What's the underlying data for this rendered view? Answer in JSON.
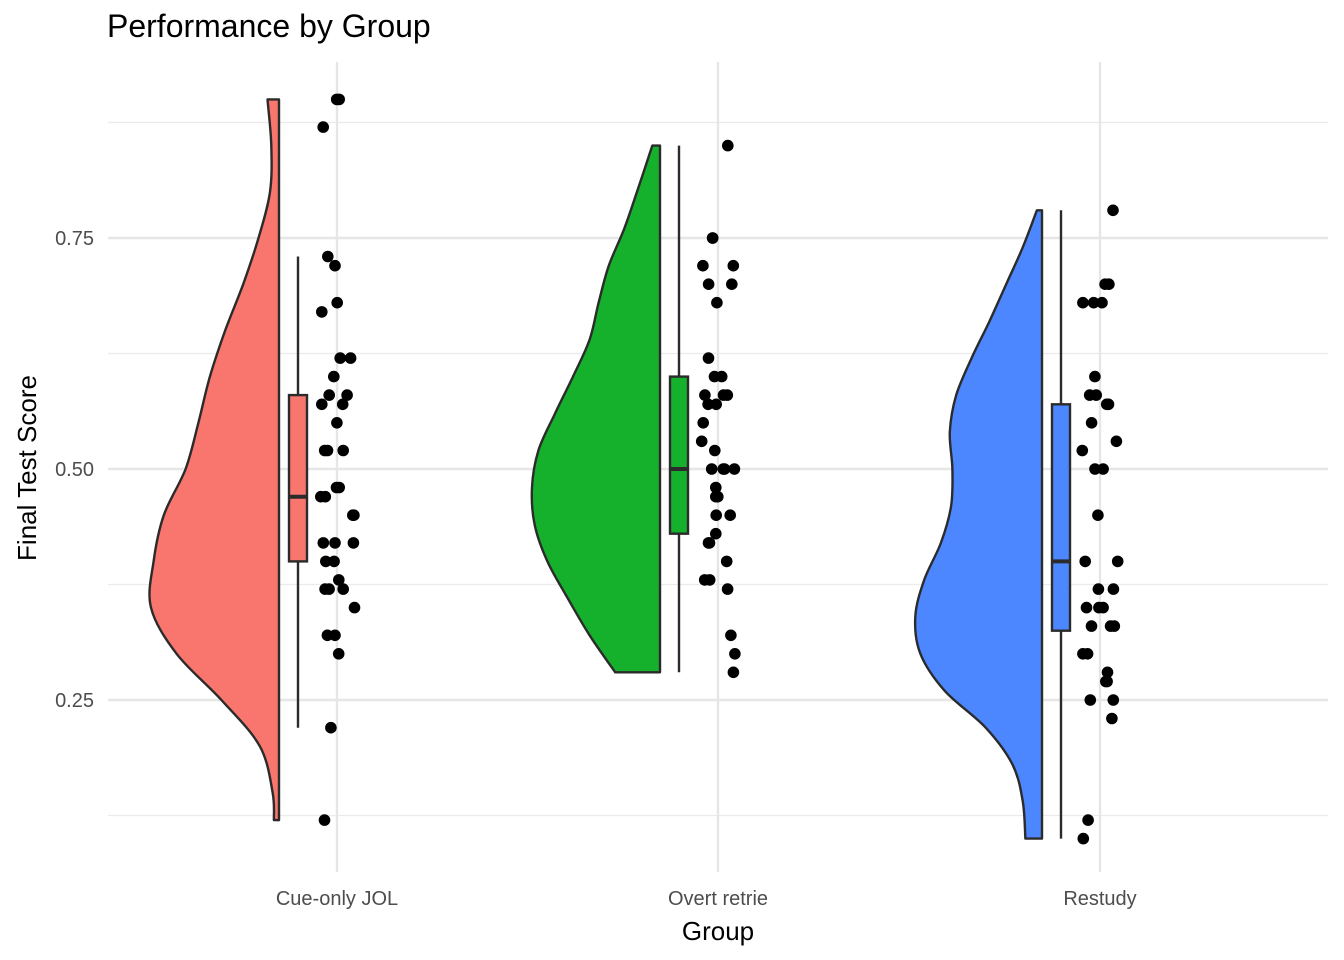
{
  "chart_data": {
    "type": "raincloud",
    "title": "Performance by Group",
    "xlabel": "Group",
    "ylabel": "Final Test Score",
    "ylim": [
      0.095,
      0.93
    ],
    "yticks": [
      0.25,
      0.5,
      0.75
    ],
    "ytick_labels": [
      "0.25",
      "0.50",
      "0.75"
    ],
    "grid": true,
    "legend": "none",
    "categories": [
      "Cue-only JOL",
      "Overt retrie",
      "Restudy"
    ],
    "groups": [
      {
        "category": "Cue-only JOL",
        "color": "#F8766D",
        "box": {
          "whisker_low": 0.22,
          "q1": 0.4,
          "median": 0.47,
          "q3": 0.58,
          "whisker_high": 0.73
        },
        "density": {
          "y": [
            0.12,
            0.15,
            0.2,
            0.25,
            0.3,
            0.35,
            0.4,
            0.45,
            0.5,
            0.55,
            0.6,
            0.65,
            0.7,
            0.75,
            0.8,
            0.85,
            0.9
          ],
          "width": [
            0.04,
            0.05,
            0.15,
            0.45,
            0.8,
            1.0,
            0.98,
            0.9,
            0.73,
            0.63,
            0.54,
            0.42,
            0.28,
            0.16,
            0.07,
            0.06,
            0.09
          ]
        },
        "points": [
          0.9,
          0.9,
          0.87,
          0.73,
          0.72,
          0.68,
          0.67,
          0.62,
          0.62,
          0.6,
          0.58,
          0.58,
          0.57,
          0.57,
          0.55,
          0.52,
          0.52,
          0.52,
          0.48,
          0.48,
          0.47,
          0.47,
          0.45,
          0.45,
          0.42,
          0.42,
          0.42,
          0.4,
          0.4,
          0.38,
          0.37,
          0.37,
          0.37,
          0.35,
          0.32,
          0.32,
          0.3,
          0.22,
          0.12
        ]
      },
      {
        "category": "Overt retrie",
        "color": "#16B12C",
        "box": {
          "whisker_low": 0.28,
          "q1": 0.43,
          "median": 0.5,
          "q3": 0.6,
          "whisker_high": 0.85
        },
        "density": {
          "y": [
            0.28,
            0.32,
            0.36,
            0.4,
            0.44,
            0.48,
            0.52,
            0.56,
            0.6,
            0.64,
            0.68,
            0.72,
            0.76,
            0.8,
            0.85
          ],
          "width": [
            0.35,
            0.55,
            0.72,
            0.88,
            0.98,
            1.0,
            0.95,
            0.82,
            0.68,
            0.55,
            0.48,
            0.4,
            0.28,
            0.18,
            0.06
          ]
        },
        "points": [
          0.85,
          0.75,
          0.75,
          0.72,
          0.72,
          0.7,
          0.7,
          0.68,
          0.62,
          0.6,
          0.6,
          0.58,
          0.58,
          0.58,
          0.57,
          0.57,
          0.55,
          0.53,
          0.52,
          0.5,
          0.5,
          0.5,
          0.5,
          0.48,
          0.47,
          0.47,
          0.45,
          0.45,
          0.43,
          0.42,
          0.42,
          0.4,
          0.38,
          0.38,
          0.37,
          0.32,
          0.3,
          0.28
        ]
      },
      {
        "category": "Restudy",
        "color": "#4D87FF",
        "box": {
          "whisker_low": 0.1,
          "q1": 0.325,
          "median": 0.4,
          "q3": 0.57,
          "whisker_high": 0.78
        },
        "density": {
          "y": [
            0.1,
            0.14,
            0.18,
            0.22,
            0.26,
            0.3,
            0.34,
            0.38,
            0.42,
            0.46,
            0.5,
            0.54,
            0.58,
            0.62,
            0.66,
            0.7,
            0.74,
            0.78
          ],
          "width": [
            0.13,
            0.15,
            0.23,
            0.44,
            0.76,
            0.95,
            0.99,
            0.92,
            0.79,
            0.71,
            0.7,
            0.72,
            0.67,
            0.55,
            0.41,
            0.28,
            0.15,
            0.04
          ]
        },
        "points": [
          0.78,
          0.7,
          0.7,
          0.68,
          0.68,
          0.68,
          0.6,
          0.58,
          0.58,
          0.57,
          0.57,
          0.55,
          0.53,
          0.52,
          0.5,
          0.5,
          0.45,
          0.4,
          0.4,
          0.37,
          0.37,
          0.35,
          0.35,
          0.35,
          0.33,
          0.33,
          0.33,
          0.3,
          0.3,
          0.28,
          0.27,
          0.27,
          0.25,
          0.25,
          0.23,
          0.12,
          0.1
        ]
      }
    ]
  }
}
